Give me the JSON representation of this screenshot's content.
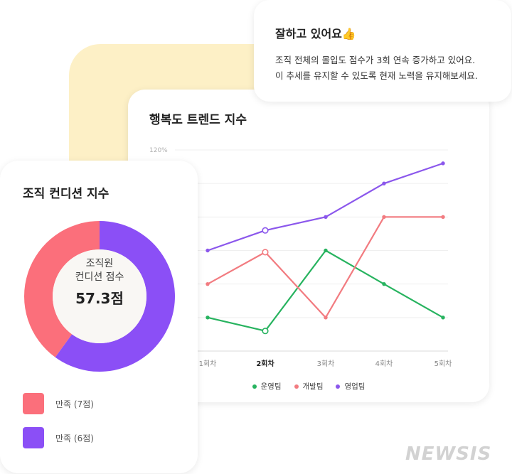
{
  "note": {
    "title": "잘하고 있어요👍",
    "line1": "조직 전체의 몰입도 점수가 3회 연속 증가하고 있어요.",
    "line2": "이 추세를 유지할 수 있도록 현재 노력을 유지해보세요."
  },
  "trend": {
    "title": "행복도 트렌드 지수"
  },
  "condition": {
    "title": "조직 컨디션 지수",
    "center_line1": "조직원",
    "center_line2": "컨디션 점수",
    "center_score": "57.3점",
    "legend": [
      {
        "label": "만족 (7점)",
        "color": "#fb6f7b"
      },
      {
        "label": "만족 (6점)",
        "color": "#8b4ff6"
      }
    ]
  },
  "chart_data": [
    {
      "type": "line",
      "title": "행복도 트렌드 지수",
      "categories": [
        "1회차",
        "2회차",
        "3회차",
        "4회차",
        "5회차"
      ],
      "highlight_category": "2회차",
      "ylim": [
        0,
        120
      ],
      "yticks": [
        0,
        20,
        40,
        60,
        80,
        100,
        120
      ],
      "ytick_label_top": "120%",
      "grid": true,
      "legend_position": "bottom",
      "series": [
        {
          "name": "운영팀",
          "color": "#27b35f",
          "values": [
            20,
            12,
            60,
            40,
            20
          ]
        },
        {
          "name": "개발팀",
          "color": "#f27b80",
          "values": [
            40,
            59,
            20,
            80,
            80
          ]
        },
        {
          "name": "영업팀",
          "color": "#8b57ec",
          "values": [
            60,
            72,
            80,
            100,
            112
          ]
        }
      ]
    },
    {
      "type": "pie",
      "title": "조직 컨디션 지수",
      "labels": [
        "만족 (7점)",
        "만족 (6점)"
      ],
      "values": [
        40,
        60
      ],
      "colors": [
        "#fb6f7b",
        "#8b4ff6"
      ]
    }
  ],
  "watermark": "NEWSIS"
}
